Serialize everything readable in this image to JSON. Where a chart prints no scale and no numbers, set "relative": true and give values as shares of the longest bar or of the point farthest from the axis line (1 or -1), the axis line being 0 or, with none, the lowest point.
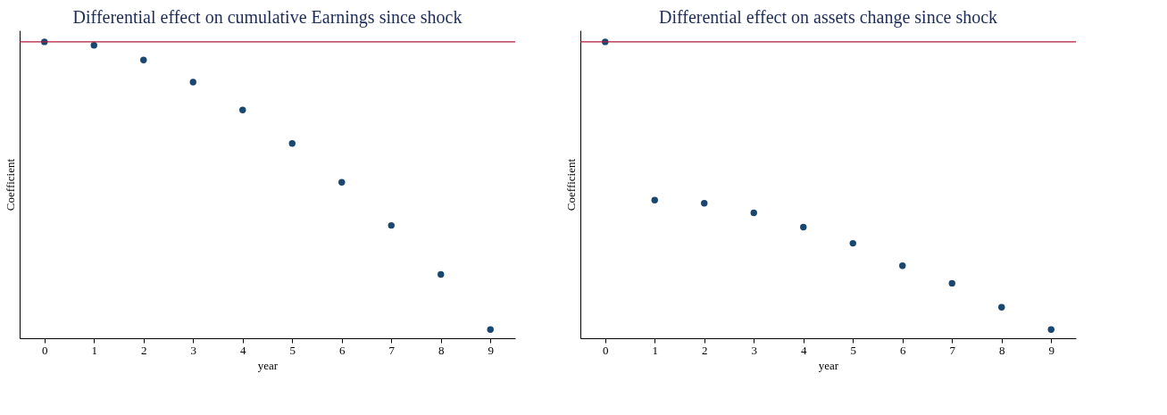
{
  "chart_data": [
    {
      "type": "scatter",
      "title": "Differential effect on cumulative Earnings since shock",
      "xlabel": "year",
      "ylabel": "Coefficient",
      "relative": true,
      "x": [
        0,
        1,
        2,
        3,
        4,
        5,
        6,
        7,
        8,
        9
      ],
      "xlim": [
        -0.5,
        9.5
      ],
      "xticks": [
        0,
        1,
        2,
        3,
        4,
        5,
        6,
        7,
        8,
        9
      ],
      "tick_labels": "x",
      "marker": "circle",
      "grid": false,
      "series": [
        {
          "color": "#1a476f",
          "values": [
            0,
            -0.012,
            -0.063,
            -0.14,
            -0.237,
            -0.353,
            -0.488,
            -0.638,
            -0.808,
            -1
          ]
        }
      ],
      "ref_lines": [
        {
          "axis": "y",
          "value": 0,
          "color": "#b01c3c"
        }
      ]
    },
    {
      "type": "scatter",
      "title": "Differential effect on assets change since shock",
      "xlabel": "year",
      "ylabel": "Coefficient",
      "relative": true,
      "x": [
        0,
        1,
        2,
        3,
        4,
        5,
        6,
        7,
        8,
        9
      ],
      "xlim": [
        -0.5,
        9.5
      ],
      "xticks": [
        0,
        1,
        2,
        3,
        4,
        5,
        6,
        7,
        8,
        9
      ],
      "tick_labels": "x",
      "marker": "circle",
      "grid": false,
      "series": [
        {
          "color": "#1a476f",
          "values": [
            0,
            -0.55,
            -0.561,
            -0.594,
            -0.644,
            -0.7,
            -0.778,
            -0.839,
            -0.922,
            -1
          ]
        }
      ],
      "ref_lines": [
        {
          "axis": "y",
          "value": 0,
          "color": "#b01c3c"
        }
      ]
    }
  ]
}
